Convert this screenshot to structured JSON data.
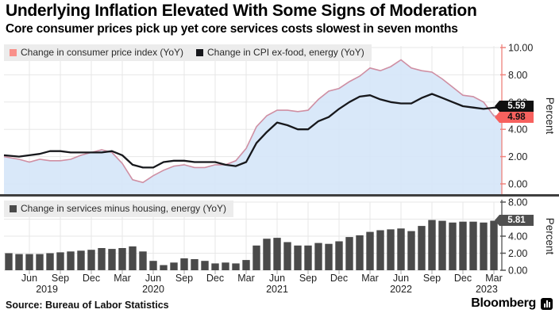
{
  "header": {
    "title": "Underlying Inflation Elevated With Some Signs of Moderation",
    "subtitle": "Core consumer prices pick up yet core services costs slowest in seven months"
  },
  "colors": {
    "cpi_line": "#cf8fa3",
    "cpi_fill": "#d5e6f8",
    "cpi_legend_swatch": "#f9908a",
    "core_line": "#17181c",
    "bars": "#4a4a4a",
    "top_axis": "#ef837d",
    "bottom_axis": "#555555",
    "grid": "#e7e7e7",
    "tick_text": "#1e1e1e",
    "badge_core_bg": "#101010",
    "badge_cpi_bg": "#f7615e",
    "badge_services_bg": "#4f4f4f"
  },
  "top_chart": {
    "legend": [
      {
        "label": "Change in consumer price index (YoY)"
      },
      {
        "label": "Change in CPI ex-food, energy (YoY)"
      }
    ],
    "axis": {
      "ticks": [
        "10.00",
        "8.00",
        "6.00",
        "4.00",
        "2.00",
        "0.00"
      ],
      "label": "Percent"
    },
    "last_values": {
      "core": "5.59",
      "cpi": "4.98"
    }
  },
  "bottom_chart": {
    "legend": [
      {
        "label": "Change in services minus housing, energy (YoY)"
      }
    ],
    "axis": {
      "ticks": [
        "8.00",
        "6.00",
        "4.00",
        "2.00",
        "0.00"
      ],
      "label": "Percent"
    },
    "last_value": "5.81"
  },
  "x_axis": {
    "month_ticks": [
      "Jun",
      "Sep",
      "Dec",
      "Mar",
      "Jun",
      "Sep",
      "Dec",
      "Mar",
      "Jun",
      "Sep",
      "Dec",
      "Mar",
      "Jun",
      "Sep",
      "Dec",
      "Mar"
    ],
    "first_tick_month_index": 2,
    "tick_step": 3,
    "year_ticks": [
      {
        "label": "2019",
        "month_index": 3.7
      },
      {
        "label": "2020",
        "month_index": 14
      },
      {
        "label": "2021",
        "month_index": 26
      },
      {
        "label": "2022",
        "month_index": 38
      },
      {
        "label": "2023",
        "month_index": 46.3
      }
    ]
  },
  "footer": {
    "source": "Source: Bureau of Labor Statistics",
    "brand": "Bloomberg"
  },
  "chart_data": [
    {
      "type": "area",
      "title": "Consumer price inflation vs core inflation",
      "frequency": "monthly",
      "x_start": "2019-04",
      "x_end": "2023-03",
      "ylabel": "Percent",
      "ylim": [
        0,
        10
      ],
      "grid": true,
      "legend_position": "top-left",
      "series": [
        {
          "name": "Change in consumer price index (YoY)",
          "style": "area",
          "last_label": "4.98",
          "values": [
            2.0,
            1.8,
            1.6,
            1.8,
            1.7,
            1.7,
            1.8,
            2.1,
            2.3,
            2.5,
            2.3,
            1.5,
            0.3,
            0.1,
            0.6,
            1.0,
            1.3,
            1.4,
            1.2,
            1.2,
            1.4,
            1.4,
            1.7,
            2.6,
            4.2,
            5.0,
            5.4,
            5.4,
            5.3,
            5.4,
            6.2,
            6.8,
            7.0,
            7.5,
            7.9,
            8.5,
            8.3,
            8.6,
            9.1,
            8.5,
            8.3,
            8.2,
            7.7,
            7.1,
            6.5,
            6.4,
            6.0,
            4.98
          ]
        },
        {
          "name": "Change in CPI ex-food, energy (YoY)",
          "style": "line",
          "last_label": "5.59",
          "values": [
            2.1,
            2.0,
            2.1,
            2.2,
            2.4,
            2.4,
            2.3,
            2.3,
            2.3,
            2.3,
            2.4,
            2.1,
            1.4,
            1.2,
            1.2,
            1.6,
            1.7,
            1.7,
            1.6,
            1.6,
            1.6,
            1.4,
            1.3,
            1.6,
            3.0,
            3.8,
            4.5,
            4.3,
            4.0,
            4.0,
            4.6,
            4.9,
            5.5,
            6.0,
            6.4,
            6.5,
            6.2,
            6.0,
            5.9,
            5.9,
            6.3,
            6.6,
            6.3,
            6.0,
            5.7,
            5.6,
            5.5,
            5.59
          ]
        }
      ]
    },
    {
      "type": "bar",
      "title": "Core services inflation",
      "frequency": "monthly",
      "x_start": "2019-04",
      "x_end": "2023-03",
      "ylabel": "Percent",
      "ylim": [
        0,
        8
      ],
      "grid": true,
      "legend_position": "top-left",
      "series": [
        {
          "name": "Change in services minus housing, energy (YoY)",
          "last_label": "5.81",
          "values": [
            2.0,
            1.9,
            1.9,
            1.9,
            2.0,
            2.1,
            2.2,
            2.3,
            2.4,
            2.6,
            2.5,
            2.6,
            2.8,
            2.2,
            1.1,
            0.6,
            0.9,
            1.4,
            1.3,
            1.1,
            0.8,
            0.9,
            0.8,
            1.2,
            2.9,
            3.7,
            3.8,
            3.3,
            2.9,
            2.9,
            3.2,
            3.1,
            3.4,
            3.9,
            4.1,
            4.5,
            4.7,
            4.8,
            4.9,
            4.6,
            5.2,
            5.9,
            5.8,
            5.6,
            5.7,
            5.7,
            5.6,
            5.81
          ]
        }
      ]
    }
  ]
}
